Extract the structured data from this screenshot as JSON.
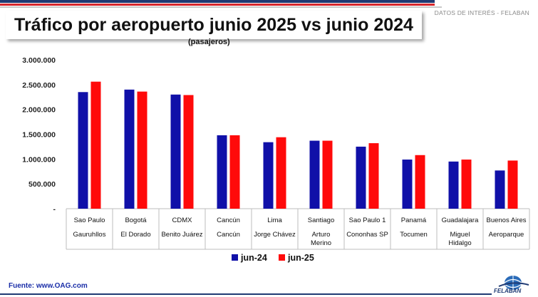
{
  "header": {
    "source_tag": "DATOS DE INTERÉS - FELABAN"
  },
  "chart_data": {
    "type": "bar",
    "title": "Tráfico por aeropuerto junio 2025 vs junio 2024",
    "subtitle": "(pasajeros)",
    "categories": [
      [
        "Sao Paulo",
        "Gauruhllos"
      ],
      [
        "Bogotá",
        "El Dorado"
      ],
      [
        "CDMX",
        "Benito Juárez"
      ],
      [
        "Cancún",
        "Cancún"
      ],
      [
        "Lima",
        "Jorge Chávez"
      ],
      [
        "Santiago",
        "Arturo",
        "Merino"
      ],
      [
        "Sao Paulo 1",
        "Cononhas SP"
      ],
      [
        "Panamá",
        "Tocumen"
      ],
      [
        "Guadalajara",
        "Miguel",
        "Hidalgo"
      ],
      [
        "Buenos Aires",
        "Aeroparque"
      ]
    ],
    "series": [
      {
        "name": "jun-24",
        "color": "#1010a8",
        "values": [
          2350000,
          2400000,
          2300000,
          1480000,
          1340000,
          1370000,
          1250000,
          990000,
          950000,
          770000
        ]
      },
      {
        "name": "jun-25",
        "color": "#ff0a0a",
        "values": [
          2560000,
          2360000,
          2290000,
          1480000,
          1440000,
          1370000,
          1320000,
          1080000,
          990000,
          970000
        ]
      }
    ],
    "ylim": [
      0,
      3000000
    ],
    "yticks": [
      0,
      500000,
      1000000,
      1500000,
      2000000,
      2500000,
      3000000
    ],
    "ytick_labels": [
      "-",
      "500.000",
      "1.000.000",
      "1.500.000",
      "2.000.000",
      "2.500.000",
      "3.000.000"
    ],
    "grid": false,
    "legend_position": "bottom-center",
    "xlabel": "",
    "ylabel": ""
  },
  "footer": {
    "source": "Fuente: www.OAG.com",
    "logo_text": "FELABAN"
  }
}
